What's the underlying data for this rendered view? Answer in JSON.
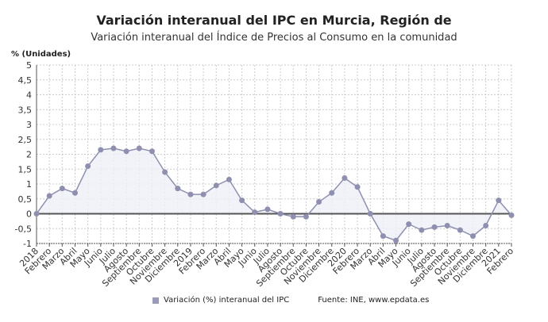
{
  "chart_data": {
    "type": "line",
    "title": "Variación interanual del IPC en Murcia, Región de",
    "subtitle": "Variación interanual del Índice de Precios al Consumo en la comunidad",
    "ylabel": "% (Unidades)",
    "ylim": [
      -1,
      5
    ],
    "yticks": [
      "5",
      "4,5",
      "4",
      "3,5",
      "3",
      "2,5",
      "2",
      "1,5",
      "1",
      "0,5",
      "0",
      "-0,5",
      "-1"
    ],
    "grid": true,
    "legend_placement": "bottom",
    "series_color": "#8f90b0",
    "categories": [
      "2018",
      "Febrero",
      "Marzo",
      "Abril",
      "Mayo",
      "Junio",
      "Julio",
      "Agosto",
      "Septiembre",
      "Octubre",
      "Noviembre",
      "Diciembre",
      "2019",
      "Febrero",
      "Marzo",
      "Abril",
      "Mayo",
      "Junio",
      "Julio",
      "Agosto",
      "Septiembre",
      "Octubre",
      "Noviembre",
      "Diciembre",
      "2020",
      "Febrero",
      "Marzo",
      "Abril",
      "Mayo",
      "Junio",
      "Julio",
      "Agosto",
      "Septiembre",
      "Octubre",
      "Noviembre",
      "Diciembre",
      "2021",
      "Febrero"
    ],
    "series": [
      {
        "name": "Variación (%) interanual del IPC",
        "values": [
          0,
          0.6,
          0.85,
          0.7,
          1.6,
          2.15,
          2.2,
          2.1,
          2.2,
          2.1,
          1.4,
          0.85,
          0.65,
          0.65,
          0.95,
          1.15,
          0.45,
          0.05,
          0.15,
          0.0,
          -0.1,
          -0.1,
          0.4,
          0.7,
          1.2,
          0.9,
          0.0,
          -0.75,
          -0.9,
          -0.35,
          -0.55,
          -0.45,
          -0.4,
          -0.55,
          -0.75,
          -0.4,
          0.45,
          -0.05
        ]
      }
    ],
    "source": "Fuente: INE, www.epdata.es"
  }
}
